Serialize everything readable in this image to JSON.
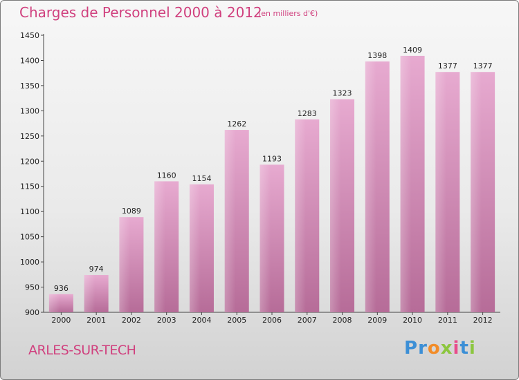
{
  "chart_data": {
    "type": "bar",
    "title": "Charges de Personnel 2000 à 2012",
    "subtitle": "(en milliers d'€)",
    "categories": [
      "2000",
      "2001",
      "2002",
      "2003",
      "2004",
      "2005",
      "2006",
      "2007",
      "2008",
      "2009",
      "2010",
      "2011",
      "2012"
    ],
    "values": [
      936,
      974,
      1089,
      1160,
      1154,
      1262,
      1193,
      1283,
      1323,
      1398,
      1409,
      1377,
      1377
    ],
    "ylim": [
      900,
      1450
    ],
    "yticks": [
      900,
      950,
      1000,
      1050,
      1100,
      1150,
      1200,
      1250,
      1300,
      1350,
      1400,
      1450
    ],
    "grid": false,
    "bar_color": "#d98fba"
  },
  "footer": {
    "city": "ARLES-SUR-TECH",
    "logo_letters": [
      "P",
      "r",
      "o",
      "x",
      "i",
      "t",
      "i"
    ],
    "logo_colors": [
      "#3c8fd6",
      "#3c8fd6",
      "#f28c28",
      "#8cc63f",
      "#e84c8b",
      "#3c8fd6",
      "#8cc63f"
    ]
  }
}
